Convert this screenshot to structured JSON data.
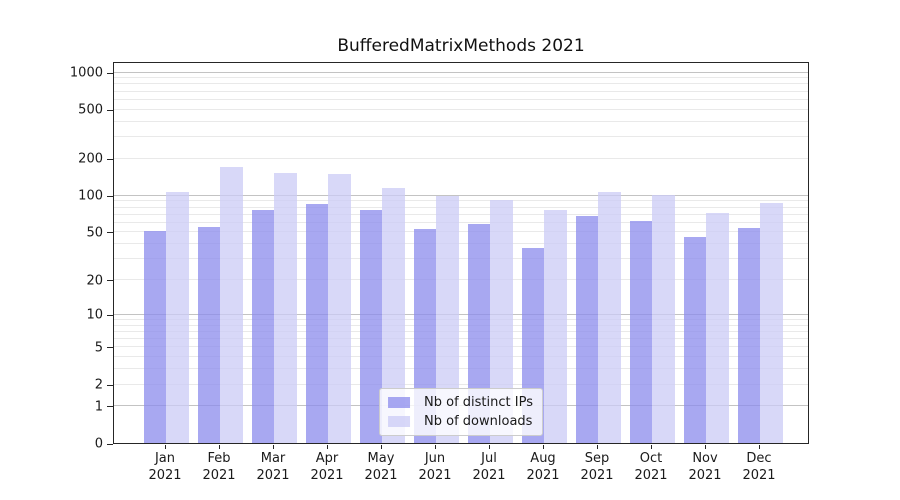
{
  "chart_data": {
    "type": "bar",
    "title": "BufferedMatrixMethods 2021",
    "year_label": "2021",
    "categories": [
      "Jan",
      "Feb",
      "Mar",
      "Apr",
      "May",
      "Jun",
      "Jul",
      "Aug",
      "Sep",
      "Oct",
      "Nov",
      "Dec"
    ],
    "series": [
      {
        "name": "Nb of distinct IPs",
        "color": "rgba(139,139,236,0.75)",
        "visible_color": "#a8a8f1",
        "values": [
          51,
          55,
          76,
          84,
          75,
          53,
          58,
          37,
          67,
          61,
          45,
          54
        ]
      },
      {
        "name": "Nb of downloads",
        "color": "rgba(203,203,245,0.75)",
        "visible_color": "#d8d8f8",
        "values": [
          107,
          170,
          152,
          150,
          114,
          98,
          92,
          75,
          107,
          101,
          72,
          86
        ]
      }
    ],
    "y_ticks": [
      0,
      1,
      2,
      5,
      10,
      20,
      50,
      100,
      200,
      500,
      1000
    ],
    "y_scale": "log10(1+v)",
    "ylim": [
      0,
      1228
    ],
    "xlabel": "",
    "ylabel": "",
    "grid": "major 1/10/100/1000, minor 2-9 per decade",
    "legend_position": "lower center"
  },
  "style": {
    "major_gridline": "#c3c3c3",
    "minor_gridline": "#e9e9e9",
    "spine": "#262626",
    "text": "#1a1a1a",
    "legend_border": "#cccccc",
    "legend_background": "rgba(255,255,255,0.8)",
    "background": "#ffffff"
  }
}
